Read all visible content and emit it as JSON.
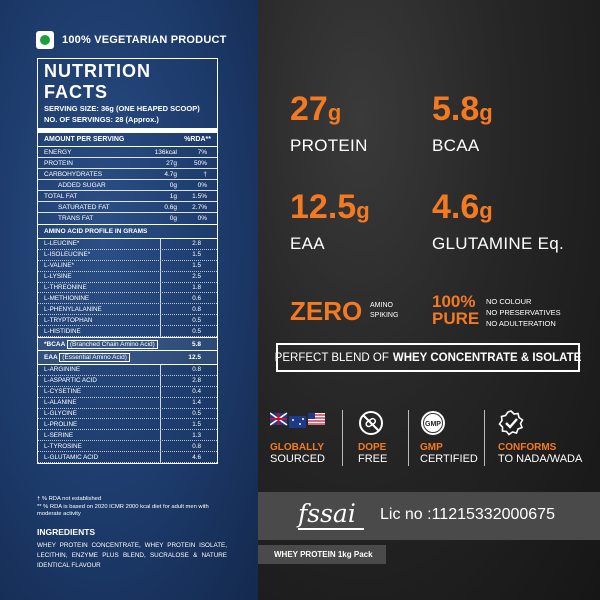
{
  "veg_label": "100% VEGETARIAN PRODUCT",
  "nutrition": {
    "title": "NUTRITION FACTS",
    "serving_size": "SERVING SIZE: 36g (ONE HEAPED SCOOP)",
    "servings": "NO. OF SERVINGS: 28 (Approx.)",
    "header_left": "AMOUNT PER SERVING",
    "header_right": "%RDA**",
    "rows": [
      {
        "label": "ENERGY",
        "amount": "136kcal",
        "rda": "7%"
      },
      {
        "label": "PROTEIN",
        "amount": "27g",
        "rda": "50%"
      },
      {
        "label": "CARBOHYDRATES",
        "amount": "4.7g",
        "rda": "†"
      },
      {
        "label": "ADDED SUGAR",
        "amount": "0g",
        "rda": "0%"
      },
      {
        "label": "TOTAL FAT",
        "amount": "1g",
        "rda": "1.5%"
      },
      {
        "label": "SATURATED FAT",
        "amount": "0.6g",
        "rda": "2.7%"
      },
      {
        "label": "TRANS FAT",
        "amount": "0g",
        "rda": "0%"
      }
    ]
  },
  "amino": {
    "title": "AMINO ACID PROFILE IN GRAMS",
    "group1": [
      {
        "label": "L-LEUCINE*",
        "value": "2.8"
      },
      {
        "label": "L-ISOLEUCINE*",
        "value": "1.5"
      },
      {
        "label": "L-VALINE*",
        "value": "1.5"
      },
      {
        "label": "L-LYSINE",
        "value": "2.5"
      },
      {
        "label": "L-THREONINE",
        "value": "1.8"
      },
      {
        "label": "L-METHIONINE",
        "value": "0.6"
      },
      {
        "label": "L-PHENYLALANINE",
        "value": "0.8"
      },
      {
        "label": "L-TRYPTOPHAN",
        "value": "0.5"
      },
      {
        "label": "L-HISTIDINE",
        "value": "0.5"
      }
    ],
    "bcaa_label": "*BCAA",
    "bcaa_full": "(Branched Chain Amino Acid)",
    "bcaa_value": "5.8",
    "eaa_label": "EAA",
    "eaa_full": "(Essential Amino Acid)",
    "eaa_value": "12.5",
    "group2": [
      {
        "label": "L-ARGININE",
        "value": "0.8"
      },
      {
        "label": "L-ASPARTIC ACID",
        "value": "2.8"
      },
      {
        "label": "L-CYSETINE",
        "value": "0.4"
      },
      {
        "label": "L-ALANINE",
        "value": "1.4"
      },
      {
        "label": "L-GLYCINE",
        "value": "0.5"
      },
      {
        "label": "L-PROLINE",
        "value": "1.5"
      },
      {
        "label": "L-SERINE",
        "value": "1.3"
      },
      {
        "label": "L-TYROSINE",
        "value": "0.8"
      },
      {
        "label": "L-GLUTAMIC ACID",
        "value": "4.6"
      }
    ]
  },
  "footnote1": "† % RDA not established",
  "footnote2": "** % RDA is based on 2020 ICMR 2000 kcal diet for adult men with moderate activity",
  "ingredients_heading": "INGREDIENTS",
  "ingredients_text": "WHEY PROTEIN CONCENTRATE, WHEY PROTEIN ISOLATE, LECITHIN, ENZYME PLUS BLEND, SUCRALOSE & NATURE IDENTICAL FLAVOUR",
  "stats": [
    {
      "value": "27",
      "unit": "g",
      "label": "PROTEIN"
    },
    {
      "value": "5.8",
      "unit": "g",
      "label": "BCAA"
    },
    {
      "value": "12.5",
      "unit": "g",
      "label": "EAA"
    },
    {
      "value": "4.6",
      "unit": "g",
      "label": "GLUTAMINE Eq."
    }
  ],
  "zero": {
    "big": "ZERO",
    "line1": "AMINO",
    "line2": "SPIKING"
  },
  "pure": {
    "line1": "100%",
    "line2": "PURE",
    "items": [
      "NO COLOUR",
      "NO PRESERVATIVES",
      "NO ADULTERATION"
    ]
  },
  "blend": {
    "prefix": "PERFECT BLEND OF",
    "bold": "WHEY CONCENTRATE & ISOLATE"
  },
  "badges": [
    {
      "icon": "flags-icon",
      "line1": "GLOBALLY",
      "line2": "SOURCED"
    },
    {
      "icon": "no-drug-icon",
      "line1": "DOPE",
      "line2": "FREE"
    },
    {
      "icon": "gmp-seal-icon",
      "seal": "GMP",
      "line1": "GMP",
      "line2": "CERTIFIED"
    },
    {
      "icon": "checkmark-badge-icon",
      "line1": "CONFORMS",
      "line2": "TO NADA/WADA"
    }
  ],
  "fssai_logo": "fssai",
  "license": "Lic no :11215332000675",
  "pack_label": "WHEY PROTEIN 1kg Pack",
  "colors": {
    "accent": "#f47a22",
    "left_bg": "#1c3a6a",
    "right_bg": "#262626",
    "veg_green": "#1e9e3a"
  }
}
